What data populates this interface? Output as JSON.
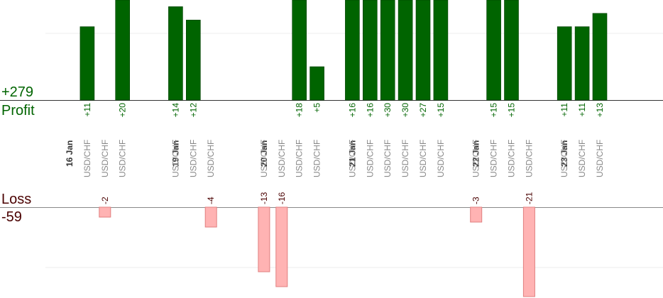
{
  "summary": {
    "profit_total": "+279",
    "profit_label": "Profit",
    "loss_label": "Loss",
    "loss_total": "-59"
  },
  "colors": {
    "profit_bar": "#006400",
    "profit_bar_edge": "#003c00",
    "loss_bar": "#ffb3b3",
    "loss_bar_edge": "#e07f7f",
    "profit_text": "#006400",
    "loss_text": "#4a0000"
  },
  "chart_data": {
    "type": "bar",
    "title": "",
    "xlabel": "",
    "ylabel": "",
    "grid": true,
    "date_labels": [
      {
        "label": "16 Jan",
        "slot": 0
      },
      {
        "label": "19 Jan",
        "slot": 6
      },
      {
        "label": "20 Jan",
        "slot": 11
      },
      {
        "label": "21 Jan",
        "slot": 16
      },
      {
        "label": "22 Jan",
        "slot": 23
      },
      {
        "label": "23 Jan",
        "slot": 28
      }
    ],
    "trades": [
      {
        "slot": 1,
        "pair": "USD/CHF",
        "value": 11
      },
      {
        "slot": 2,
        "pair": "USD/CHF",
        "value": -2
      },
      {
        "slot": 3,
        "pair": "USD/CHF",
        "value": 20
      },
      {
        "slot": 6,
        "pair": "USD/CHF",
        "value": 14
      },
      {
        "slot": 7,
        "pair": "USD/CHF",
        "value": 12
      },
      {
        "slot": 8,
        "pair": "USD/CHF",
        "value": -4
      },
      {
        "slot": 11,
        "pair": "USD/CHF",
        "value": -13
      },
      {
        "slot": 12,
        "pair": "USD/CHF",
        "value": -16
      },
      {
        "slot": 13,
        "pair": "USD/CHF",
        "value": 18
      },
      {
        "slot": 14,
        "pair": "USD/CHF",
        "value": 5
      },
      {
        "slot": 16,
        "pair": "USD/CHF",
        "value": 16
      },
      {
        "slot": 17,
        "pair": "USD/CHF",
        "value": 16
      },
      {
        "slot": 18,
        "pair": "USD/CHF",
        "value": 30
      },
      {
        "slot": 19,
        "pair": "USD/CHF",
        "value": 30
      },
      {
        "slot": 20,
        "pair": "USD/CHF",
        "value": 27
      },
      {
        "slot": 21,
        "pair": "USD/CHF",
        "value": 15
      },
      {
        "slot": 23,
        "pair": "USD/CHF",
        "value": -3
      },
      {
        "slot": 24,
        "pair": "USD/CHF",
        "value": 15
      },
      {
        "slot": 25,
        "pair": "USD/CHF",
        "value": 15
      },
      {
        "slot": 26,
        "pair": "USD/CHF",
        "value": -21
      },
      {
        "slot": 28,
        "pair": "USD/CHF",
        "value": 11
      },
      {
        "slot": 29,
        "pair": "USD/CHF",
        "value": 11
      },
      {
        "slot": 30,
        "pair": "USD/CHF",
        "value": 13
      }
    ]
  }
}
